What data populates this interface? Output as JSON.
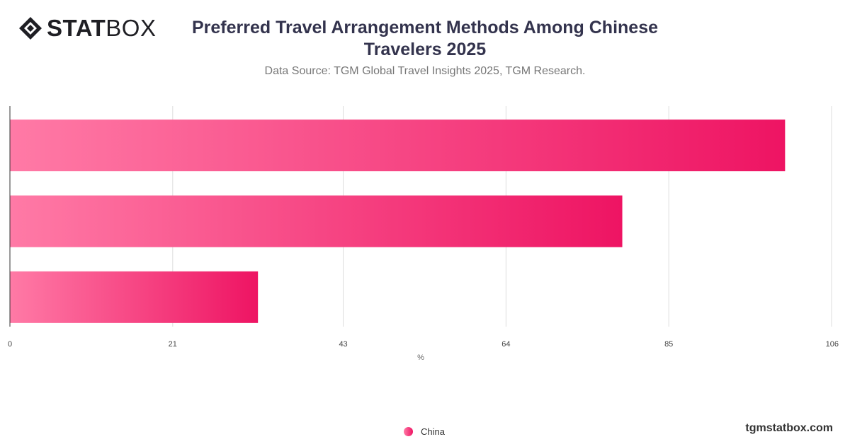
{
  "brand": {
    "logo_bold": "STAT",
    "logo_light": "BOX",
    "footer": "tgmstatbox.com"
  },
  "header": {
    "title": "Preferred Travel Arrangement Methods Among Chinese Travelers 2025",
    "subtitle": "Data Source: TGM Global Travel Insights 2025, TGM Research."
  },
  "chart_data": {
    "type": "bar",
    "orientation": "horizontal",
    "title": "Preferred Travel Arrangement Methods Among Chinese Travelers 2025",
    "subtitle": "Data Source: TGM Global Travel Insights 2025, TGM Research.",
    "xlabel": "%",
    "ylabel": "",
    "xlim": [
      0,
      106
    ],
    "ticks": [
      0,
      21,
      43,
      64,
      85,
      106
    ],
    "grid": true,
    "legend_position": "bottom-center",
    "series": [
      {
        "name": "China",
        "values": [
          100,
          79,
          32
        ],
        "color_start": "#ff7aa6",
        "color_end": "#ee1463"
      }
    ]
  }
}
